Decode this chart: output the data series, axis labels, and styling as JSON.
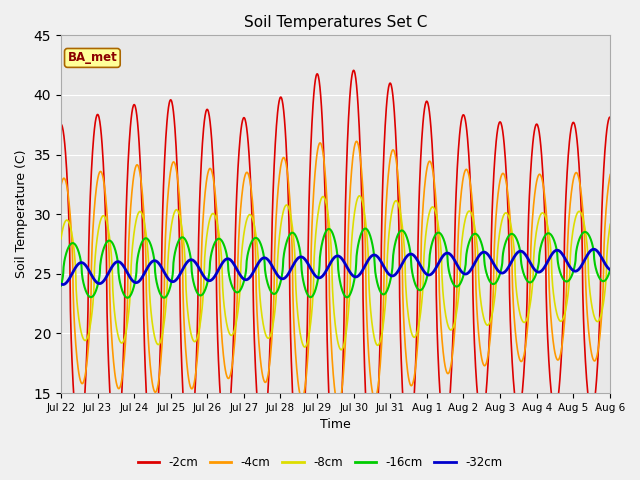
{
  "title": "Soil Temperatures Set C",
  "xlabel": "Time",
  "ylabel": "Soil Temperature (C)",
  "ylim": [
    15,
    45
  ],
  "yticks": [
    15,
    20,
    25,
    30,
    35,
    40,
    45
  ],
  "legend_label": "BA_met",
  "series_colors": {
    "-2cm": "#dd0000",
    "-4cm": "#ff9900",
    "-8cm": "#dddd00",
    "-16cm": "#00cc00",
    "-32cm": "#0000cc"
  },
  "legend_order": [
    "-2cm",
    "-4cm",
    "-8cm",
    "-16cm",
    "-32cm"
  ],
  "fig_facecolor": "#f0f0f0",
  "plot_facecolor": "#e8e8e8",
  "grid_color": "#ffffff",
  "figsize": [
    6.4,
    4.8
  ],
  "dpi": 100
}
